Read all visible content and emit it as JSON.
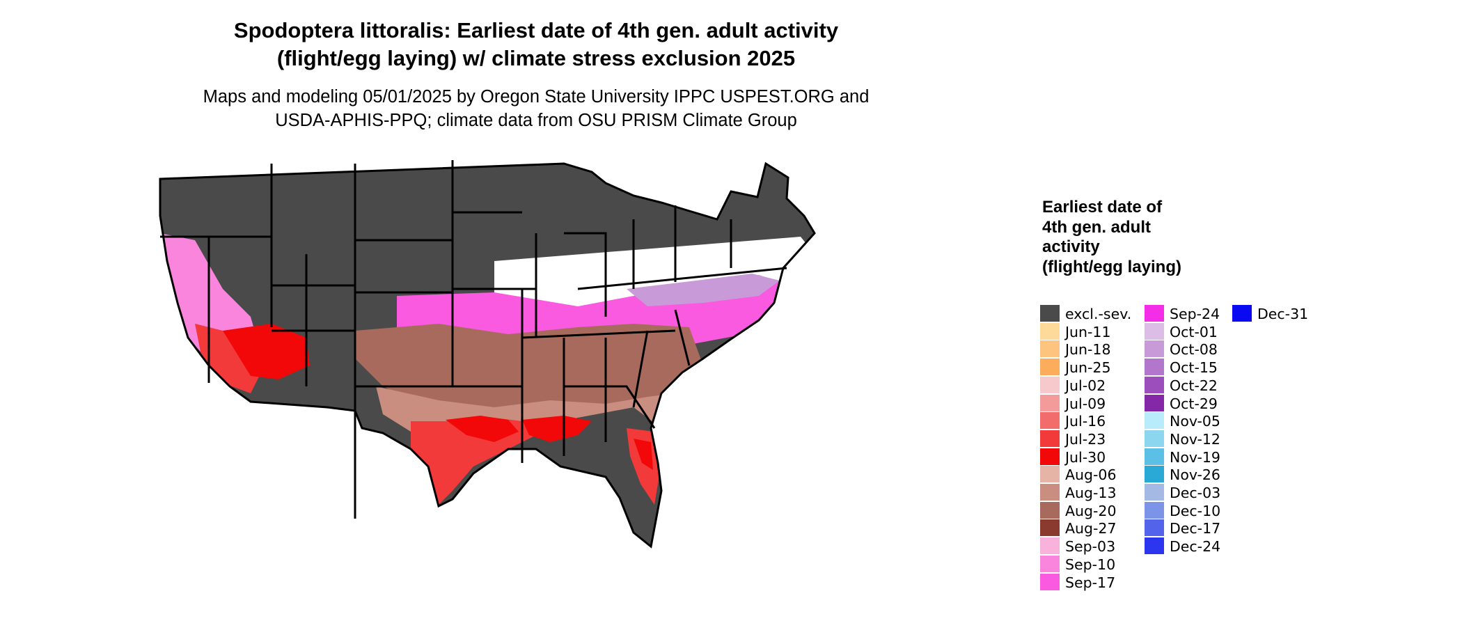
{
  "title_line1": "Spodoptera littoralis: Earliest date of 4th gen. adult activity",
  "title_line2": "(flight/egg laying) w/ climate stress exclusion 2025",
  "subtitle_line1": "Maps and modeling 05/01/2025 by Oregon State University IPPC USPEST.ORG and",
  "subtitle_line2": "USDA-APHIS-PPQ; climate data from OSU PRISM Climate Group",
  "legend": {
    "title": "Earliest date of 4th gen. adult activity (flight/egg laying)",
    "items": [
      {
        "label": "excl.-sev.",
        "color": "#4a4a4a"
      },
      {
        "label": "Jun-11",
        "color": "#fdd99a"
      },
      {
        "label": "Jun-18",
        "color": "#fcc47e"
      },
      {
        "label": "Jun-25",
        "color": "#fbad5c"
      },
      {
        "label": "Jul-02",
        "color": "#f6c9cd"
      },
      {
        "label": "Jul-09",
        "color": "#f39a9a"
      },
      {
        "label": "Jul-16",
        "color": "#f26c6c"
      },
      {
        "label": "Jul-23",
        "color": "#f23a3a"
      },
      {
        "label": "Jul-30",
        "color": "#f20808"
      },
      {
        "label": "Aug-06",
        "color": "#e6b4a6"
      },
      {
        "label": "Aug-13",
        "color": "#c98e80"
      },
      {
        "label": "Aug-20",
        "color": "#a86a5c"
      },
      {
        "label": "Aug-27",
        "color": "#8a3a2e"
      },
      {
        "label": "Sep-03",
        "color": "#f9b2dc"
      },
      {
        "label": "Sep-10",
        "color": "#f985dd"
      },
      {
        "label": "Sep-17",
        "color": "#f95ae0"
      },
      {
        "label": "Sep-24",
        "color": "#f42ee6"
      },
      {
        "label": "Oct-01",
        "color": "#dcbde6"
      },
      {
        "label": "Oct-08",
        "color": "#c99ad8"
      },
      {
        "label": "Oct-15",
        "color": "#b276cc"
      },
      {
        "label": "Oct-22",
        "color": "#9c4fbc"
      },
      {
        "label": "Oct-29",
        "color": "#8428a8"
      },
      {
        "label": "Nov-05",
        "color": "#b8ecfa"
      },
      {
        "label": "Nov-12",
        "color": "#8cd6f0"
      },
      {
        "label": "Nov-19",
        "color": "#5cc0e6"
      },
      {
        "label": "Nov-26",
        "color": "#2aa8d6"
      },
      {
        "label": "Dec-03",
        "color": "#a4bae4"
      },
      {
        "label": "Dec-10",
        "color": "#7c94e8"
      },
      {
        "label": "Dec-17",
        "color": "#5464ea"
      },
      {
        "label": "Dec-24",
        "color": "#2c36ee"
      },
      {
        "label": "Dec-31",
        "color": "#0a0af2"
      }
    ]
  },
  "map": {
    "excluded_color": "#4a4a4a",
    "no_data_color": "#ffffff",
    "border_color": "#000000"
  }
}
